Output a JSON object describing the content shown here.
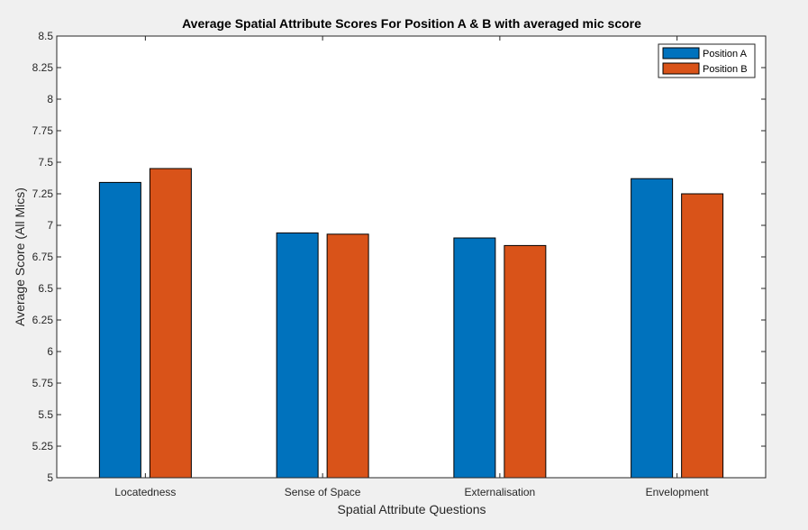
{
  "chart_data": {
    "type": "bar",
    "title": "Average Spatial Attribute Scores For Position A & B with averaged mic score",
    "xlabel": "Spatial Attribute Questions",
    "ylabel": "Average Score (All Mics)",
    "categories": [
      "Locatedness",
      "Sense of Space",
      "Externalisation",
      "Envelopment"
    ],
    "series": [
      {
        "name": "Position A",
        "color": "#0072bd",
        "values": [
          7.34,
          6.94,
          6.9,
          7.37
        ]
      },
      {
        "name": "Position B",
        "color": "#d95319",
        "values": [
          7.45,
          6.93,
          6.84,
          7.25
        ]
      }
    ],
    "ylim": [
      5,
      8.5
    ],
    "yticks": [
      "5",
      "5.25",
      "5.5",
      "5.75",
      "6",
      "6.25",
      "6.5",
      "6.75",
      "7",
      "7.25",
      "7.5",
      "7.75",
      "8",
      "8.25",
      "8.5"
    ],
    "grid": false,
    "legend_position": "top-right"
  }
}
